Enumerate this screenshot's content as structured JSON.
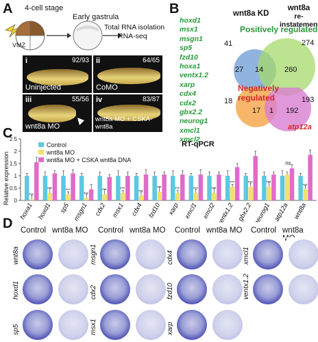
{
  "panelA": {
    "label": "A",
    "stage1": "4-cell stage",
    "stage2": "Early gastrula",
    "vmz": "VMZ",
    "pipeline_line1": "Total RNA isolation",
    "pipeline_line2": "RNA-seq",
    "embryos": [
      {
        "num": "i",
        "tag": "Uninjected",
        "count": "92/93"
      },
      {
        "num": "ii",
        "tag": "CoMO",
        "count": "64/65"
      },
      {
        "num": "iii",
        "tag": "wnt8a MO",
        "count": "55/56"
      },
      {
        "num": "iv",
        "tag": "wnt8a MO + CSKA-wnt8a",
        "count": "83/87"
      }
    ]
  },
  "panelB": {
    "label": "B",
    "genes": [
      "hoxd1",
      "msx1",
      "msgn1",
      "sp5",
      "fzd10",
      "hoxa1",
      "ventx1.2",
      "xarp",
      "cdx4",
      "cdx2",
      "gbx2.2",
      "neurog1",
      "xmcl1",
      "xmcl2"
    ],
    "col1_title": "wnt8a KD",
    "col2_line1": "wnt8a",
    "col2_line2": "re-instatement",
    "positive_title": "Positively regulated",
    "negative_title": "Negatively regulated",
    "pos": {
      "left_total": "41",
      "right_total": "274",
      "left_only": "27",
      "overlap": "14",
      "right_only": "260"
    },
    "neg": {
      "left_total": "18",
      "right_total": "193",
      "left_only": "17",
      "overlap": "1",
      "right_only": "192"
    },
    "neg_gene": "atp12a",
    "colors": {
      "blue": "#7ea7d8",
      "green": "#a6d96a",
      "orange": "#f6ae5a",
      "pink": "#d97ed1",
      "pos_title": "#2a9a3a",
      "neg_title": "#d12a2a"
    }
  },
  "panelC": {
    "label": "C",
    "legend": [
      "Control",
      "wnt8a MO",
      "wnt8a MO + CSKA wnt8a DNA"
    ],
    "ns": "ns"
  },
  "chart_data": {
    "type": "bar",
    "title": "RT-qPCR",
    "ylabel": "Relative expression",
    "ylim": [
      0,
      2.5
    ],
    "yticks": [
      "0",
      "0.5",
      "1",
      "1.5",
      "2",
      "2.5"
    ],
    "categories": [
      "hoxa1",
      "hoxd1",
      "sp5",
      "msgn1",
      "cdx2",
      "msx1",
      "cdx4",
      "fzd10",
      "xarp",
      "xmcl1",
      "xmcl2",
      "ventx1.2",
      "gbx2.2",
      "neurog1",
      "atp12a",
      "wnt8a"
    ],
    "series": [
      {
        "name": "Control",
        "color": "#5ec8e0",
        "values": [
          1,
          1,
          1,
          1,
          1,
          1,
          1,
          1,
          1,
          1,
          1,
          1,
          1,
          1,
          1,
          1
        ]
      },
      {
        "name": "wnt8a MO",
        "color": "#f3e06a",
        "values": [
          0.05,
          0.3,
          0.25,
          0.1,
          0.25,
          0.3,
          0.2,
          0.35,
          0.3,
          0.3,
          0.3,
          0.55,
          0.55,
          0.55,
          1.05,
          0.45
        ]
      },
      {
        "name": "wnt8a MO + CSKA wnt8a DNA",
        "color": "#e06bc8",
        "values": [
          1.55,
          1.1,
          1.1,
          0.45,
          0.95,
          1.0,
          1.05,
          1.05,
          1.05,
          1.05,
          1.05,
          1.35,
          1.8,
          1.05,
          1.3,
          1.85
        ]
      }
    ],
    "colors": {
      "Control": "#5ec8e0",
      "wnt8a MO": "#f3e06a",
      "wnt8a MO + CSKA wnt8a DNA": "#e06bc8"
    }
  },
  "panelD": {
    "label": "D",
    "col_control": "Control",
    "col_mo": "wnt8a MO",
    "groups": [
      {
        "genes": [
          "wnt8a",
          "hoxd1",
          "sp5"
        ]
      },
      {
        "genes": [
          "msgn1",
          "cdx2",
          "msx1"
        ]
      },
      {
        "genes": [
          "cdx4",
          "fzd10",
          "xarp"
        ]
      },
      {
        "genes": [
          "xmcl1",
          "ventx1.2"
        ]
      }
    ]
  }
}
